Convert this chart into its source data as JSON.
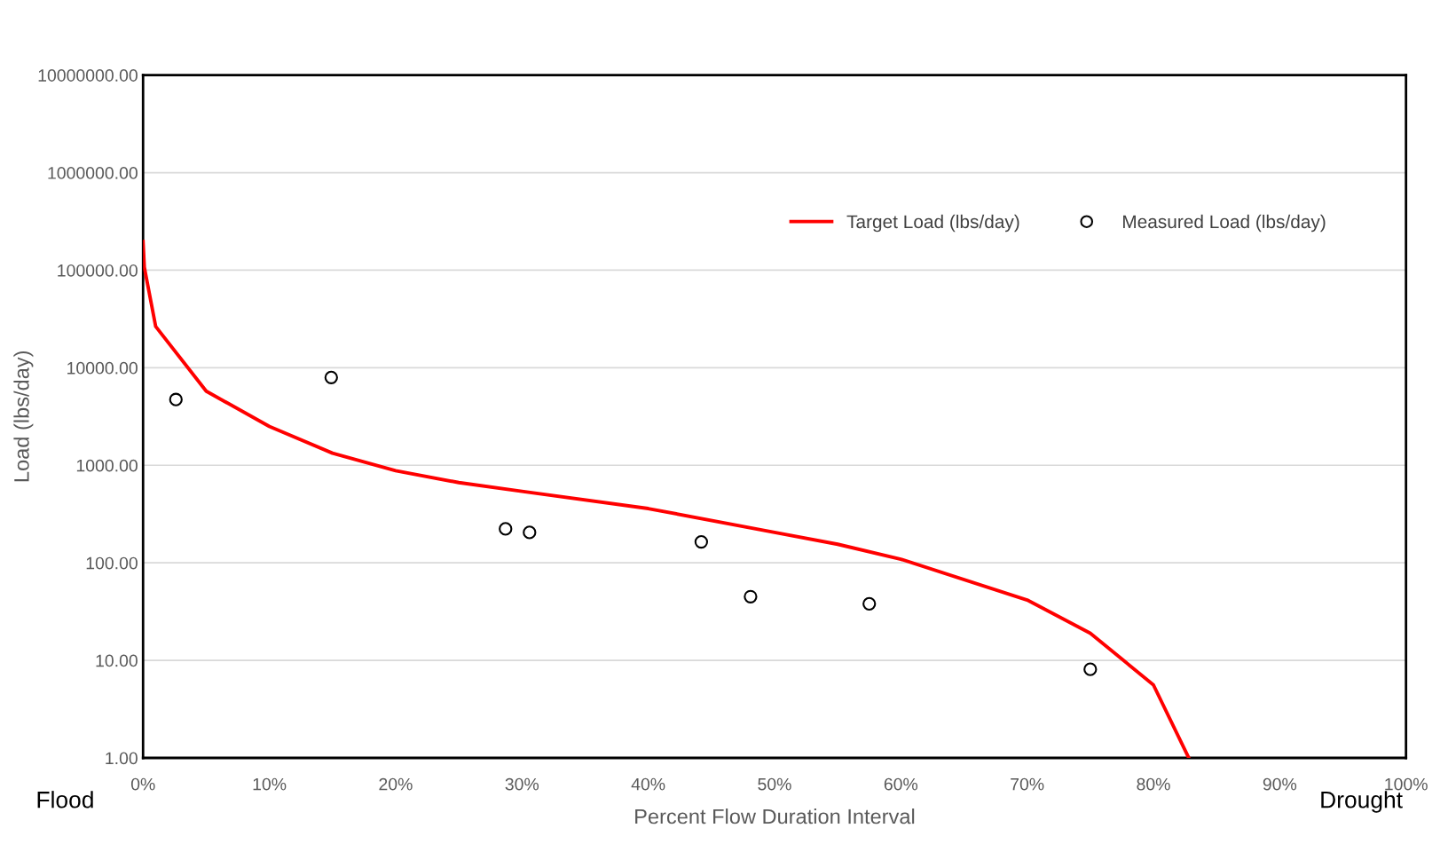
{
  "chart_data": {
    "type": "line",
    "xlabel": "Percent Flow Duration Interval",
    "ylabel": "Load (lbs/day)",
    "log": "y",
    "grid": "y",
    "legend": "top right",
    "xlim": [
      0,
      100
    ],
    "xticks": [
      {
        "value": 0,
        "label": "0%"
      },
      {
        "value": 10,
        "label": "10%"
      },
      {
        "value": 20,
        "label": "20%"
      },
      {
        "value": 30,
        "label": "30%"
      },
      {
        "value": 40,
        "label": "40%"
      },
      {
        "value": 50,
        "label": "50%"
      },
      {
        "value": 60,
        "label": "60%"
      },
      {
        "value": 70,
        "label": "70%"
      },
      {
        "value": 80,
        "label": "80%"
      },
      {
        "value": 90,
        "label": "90%"
      },
      {
        "value": 100,
        "label": "100%"
      }
    ],
    "ylim": [
      1,
      10000000
    ],
    "yticks": [
      {
        "value": 1,
        "label": "1.00"
      },
      {
        "value": 10,
        "label": "10.00"
      },
      {
        "value": 100,
        "label": "100.00"
      },
      {
        "value": 1000,
        "label": "1000.00"
      },
      {
        "value": 10000,
        "label": "10000.00"
      },
      {
        "value": 100000,
        "label": "100000.00"
      },
      {
        "value": 1000000,
        "label": "1000000.00"
      },
      {
        "value": 10000000,
        "label": "10000000.00"
      }
    ],
    "series": [
      {
        "name": "Target Load (lbs/day)",
        "color": "#ff0000",
        "marker": "none",
        "line_style": "solid",
        "x": [
          0,
          0.1,
          1,
          5,
          10,
          15,
          20,
          25,
          30,
          40,
          50,
          55,
          60,
          70,
          75,
          80,
          82.8
        ],
        "values": [
          197000,
          107000,
          26500,
          5750,
          2500,
          1330,
          880,
          665,
          540,
          360,
          205,
          155,
          109,
          41.6,
          19,
          5.6,
          1
        ]
      },
      {
        "name": "Measured Load (lbs/day)",
        "type": "scatter",
        "color": "#000000",
        "marker": "circle",
        "x": [
          2.6,
          14.9,
          28.7,
          30.6,
          44.2,
          48.1,
          57.5,
          75.0
        ],
        "values": [
          4720,
          7950,
          223,
          205,
          164,
          45,
          38,
          8.1
        ]
      }
    ],
    "annotations": [
      "Flood",
      "Drought"
    ]
  }
}
